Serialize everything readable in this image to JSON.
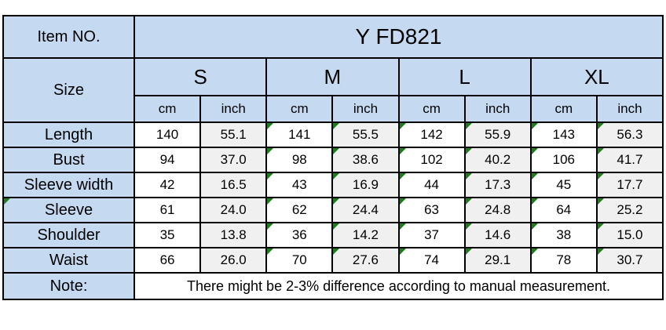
{
  "header": {
    "item_no_label": "Item NO.",
    "item_no_value": "Y FD821",
    "size_label": "Size",
    "sizes": [
      "S",
      "M",
      "L",
      "XL"
    ],
    "units": [
      "cm",
      "inch"
    ]
  },
  "measurements": [
    {
      "label": "Length",
      "label_has_flag": false,
      "values": [
        "140",
        "55.1",
        "141",
        "55.5",
        "142",
        "55.9",
        "143",
        "56.3"
      ]
    },
    {
      "label": "Bust",
      "label_has_flag": false,
      "values": [
        "94",
        "37.0",
        "98",
        "38.6",
        "102",
        "40.2",
        "106",
        "41.7"
      ]
    },
    {
      "label": "Sleeve width",
      "label_has_flag": false,
      "values": [
        "42",
        "16.5",
        "43",
        "16.9",
        "44",
        "17.3",
        "45",
        "17.7"
      ]
    },
    {
      "label": "Sleeve",
      "label_has_flag": true,
      "values": [
        "61",
        "24.0",
        "62",
        "24.4",
        "63",
        "24.8",
        "64",
        "25.2"
      ]
    },
    {
      "label": "Shoulder",
      "label_has_flag": false,
      "values": [
        "35",
        "13.8",
        "36",
        "14.2",
        "37",
        "14.6",
        "38",
        "15.0"
      ]
    },
    {
      "label": "Waist",
      "label_has_flag": false,
      "values": [
        "66",
        "26.0",
        "70",
        "27.6",
        "74",
        "29.1",
        "78",
        "30.7"
      ]
    }
  ],
  "note": {
    "label": "Note:",
    "text": "There might be 2-3% difference according to manual measurement."
  },
  "flags": {
    "flagged_value_columns": [
      2,
      3,
      4,
      5,
      6,
      7
    ],
    "flag_meaning": "excel-error-indicator-triangle"
  },
  "colors": {
    "header_fill": "#c5d9f1",
    "inch_column_fill": "#f0f0f0",
    "cm_column_fill": "#ffffff",
    "border": "#000000",
    "flag_green": "#1e7e1e",
    "text": "#000000"
  }
}
